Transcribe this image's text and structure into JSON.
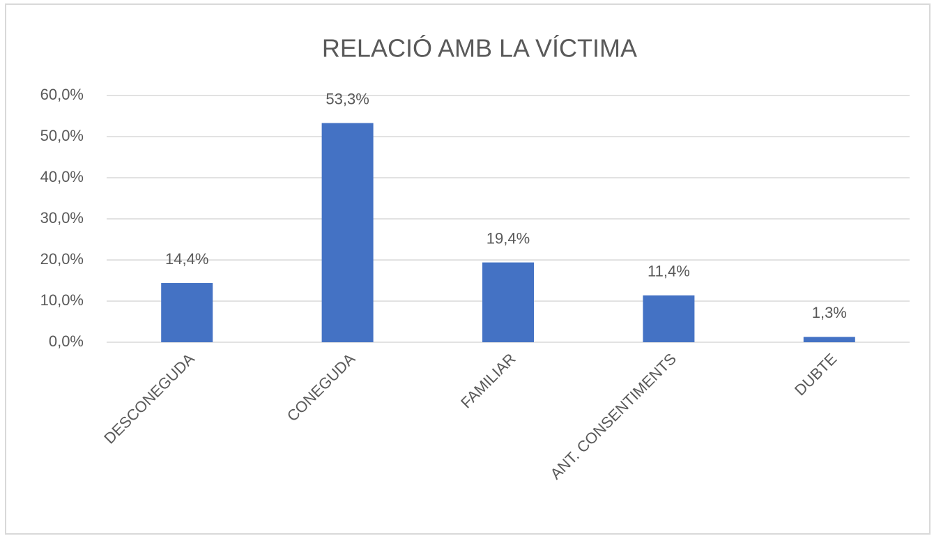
{
  "chart_data": {
    "type": "bar",
    "title": "RELACIÓ AMB LA VÍCTIMA",
    "categories": [
      "DESCONEGUDA",
      "CONEGUDA",
      "FAMILIAR",
      "ANT. CONSENTIMENTS",
      "DUBTE"
    ],
    "values": [
      14.4,
      53.3,
      19.4,
      11.4,
      1.3
    ],
    "value_labels": [
      "14,4%",
      "53,3%",
      "19,4%",
      "11,4%",
      "1,3%"
    ],
    "color": "#4472c4",
    "ylim": [
      0,
      60
    ],
    "yticks": [
      {
        "value": 0,
        "label": "0,0%"
      },
      {
        "value": 10,
        "label": "10,0%"
      },
      {
        "value": 20,
        "label": "20,0%"
      },
      {
        "value": 30,
        "label": "30,0%"
      },
      {
        "value": 40,
        "label": "40,0%"
      },
      {
        "value": 50,
        "label": "50,0%"
      },
      {
        "value": 60,
        "label": "60,0%"
      }
    ],
    "grid": true
  }
}
